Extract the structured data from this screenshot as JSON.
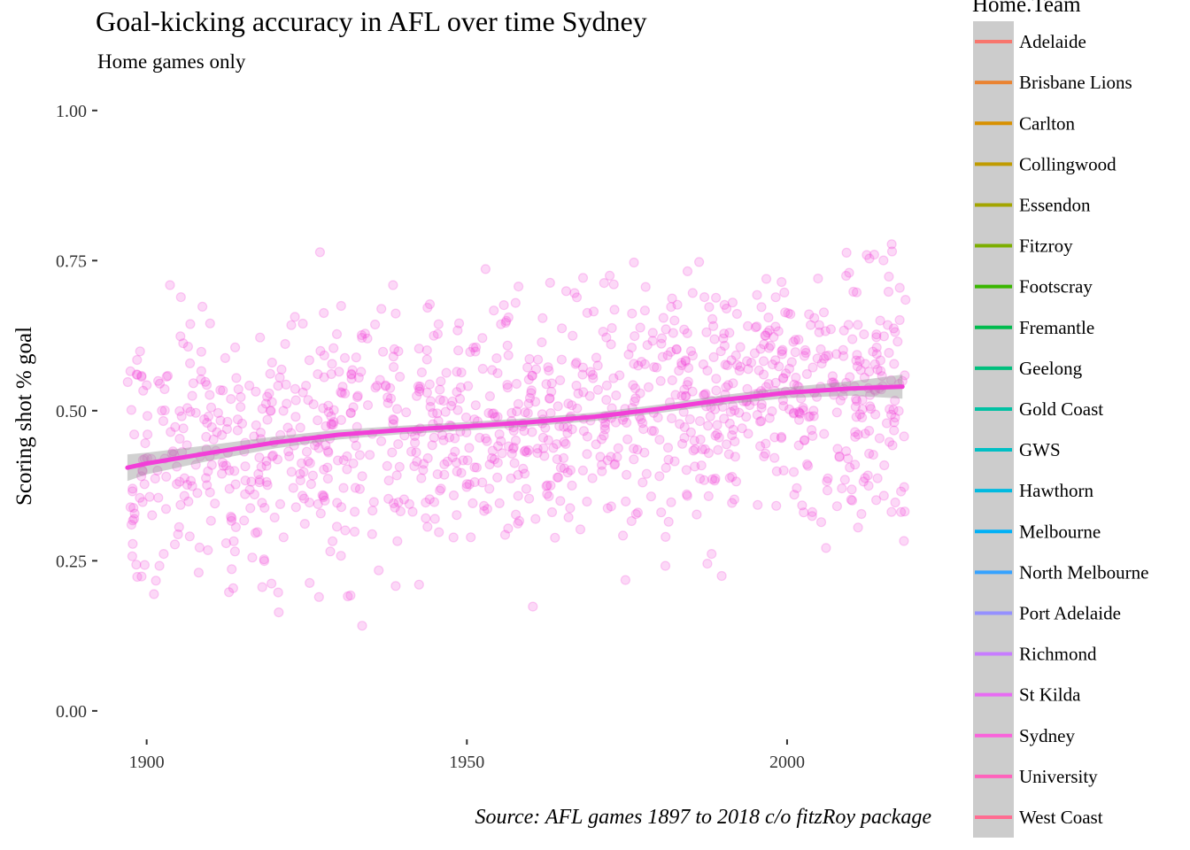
{
  "title": "Goal-kicking accuracy in AFL over time Sydney",
  "subtitle": "Home games only",
  "caption": "Source: AFL games 1897 to 2018 c/o fitzRoy package",
  "chart_data": {
    "type": "scatter",
    "xlabel": "",
    "ylabel": "Scoring shot % goal",
    "xlim": [
      1893,
      2019.5
    ],
    "ylim": [
      -0.04,
      1.01
    ],
    "x_ticks": [
      1900,
      1950,
      2000
    ],
    "x_tick_labels": [
      "1900",
      "1950",
      "2000"
    ],
    "y_ticks": [
      0,
      0.25,
      0.5,
      0.75,
      1
    ],
    "y_tick_labels": [
      "0.00",
      "0.25",
      "0.50",
      "0.75",
      "1.00"
    ],
    "grid": false,
    "point_color": "#F23ED8",
    "point_alpha": 0.2,
    "point_count": 1200,
    "points_note": "Individual game points sampled around trend with noise; approx. 10 games per season 1897-2018",
    "trend": {
      "name": "Sydney",
      "color": "#F23ED8",
      "ribbon_color": "#999999",
      "x": [
        1897,
        1900,
        1910,
        1920,
        1930,
        1940,
        1950,
        1960,
        1970,
        1980,
        1990,
        2000,
        2010,
        2018
      ],
      "y": [
        0.405,
        0.412,
        0.43,
        0.447,
        0.46,
        0.468,
        0.474,
        0.481,
        0.49,
        0.503,
        0.518,
        0.53,
        0.537,
        0.54
      ],
      "ribbon_halfwidth": [
        0.022,
        0.018,
        0.013,
        0.01,
        0.008,
        0.007,
        0.007,
        0.007,
        0.007,
        0.007,
        0.008,
        0.009,
        0.012,
        0.02
      ]
    },
    "legend": {
      "title": "Home.Team",
      "placement": "right",
      "background": "#cccccc",
      "entries": [
        {
          "name": "Adelaide",
          "color": "#F8766D"
        },
        {
          "name": "Brisbane Lions",
          "color": "#EA8331"
        },
        {
          "name": "Carlton",
          "color": "#D89000"
        },
        {
          "name": "Collingwood",
          "color": "#C09B00"
        },
        {
          "name": "Essendon",
          "color": "#A3A500"
        },
        {
          "name": "Fitzroy",
          "color": "#7CAE00"
        },
        {
          "name": "Footscray",
          "color": "#39B600"
        },
        {
          "name": "Fremantle",
          "color": "#00BB4E"
        },
        {
          "name": "Geelong",
          "color": "#00BF7D"
        },
        {
          "name": "Gold Coast",
          "color": "#00C1A3"
        },
        {
          "name": "GWS",
          "color": "#00BFC4"
        },
        {
          "name": "Hawthorn",
          "color": "#00BAE0"
        },
        {
          "name": "Melbourne",
          "color": "#00B0F6"
        },
        {
          "name": "North Melbourne",
          "color": "#35A2FF"
        },
        {
          "name": "Port Adelaide",
          "color": "#9590FF"
        },
        {
          "name": "Richmond",
          "color": "#C77CFF"
        },
        {
          "name": "St Kilda",
          "color": "#E76BF3"
        },
        {
          "name": "Sydney",
          "color": "#FA62DB"
        },
        {
          "name": "University",
          "color": "#FF62BC"
        },
        {
          "name": "West Coast",
          "color": "#FF6C91"
        }
      ]
    }
  }
}
